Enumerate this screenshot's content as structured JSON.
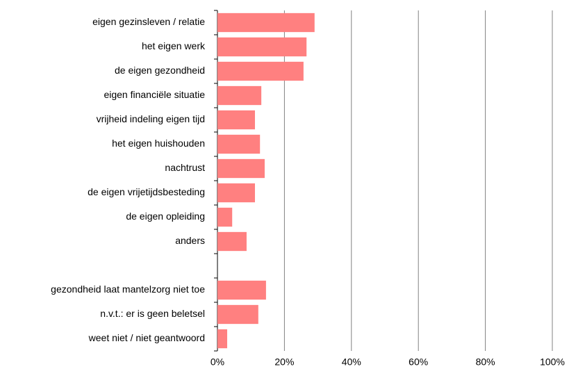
{
  "chart_data": {
    "type": "hbar",
    "categories": [
      "eigen gezinsleven / relatie",
      "het eigen werk",
      "de eigen gezondheid",
      "eigen financiële situatie",
      "vrijheid indeling eigen tijd",
      "het eigen huishouden",
      "nachtrust",
      "de eigen vrijetijdsbesteding",
      "de eigen opleiding",
      "anders",
      null,
      "gezondheid laat mantelzorg niet toe",
      "n.v.t.: er is geen beletsel",
      "weet niet / niet geantwoord"
    ],
    "values": [
      29.0,
      26.6,
      25.7,
      13.1,
      11.2,
      12.7,
      14.1,
      11.2,
      4.4,
      8.7,
      null,
      14.5,
      12.2,
      2.9
    ],
    "color": "#ff8080",
    "xlim": [
      0,
      100
    ],
    "xticks": [
      {
        "value": 0,
        "label": "0%"
      },
      {
        "value": 20,
        "label": "20%"
      },
      {
        "value": 40,
        "label": "40%"
      },
      {
        "value": 60,
        "label": "60%"
      },
      {
        "value": 80,
        "label": "80%"
      },
      {
        "value": 100,
        "label": "100%"
      }
    ],
    "grid": true
  }
}
